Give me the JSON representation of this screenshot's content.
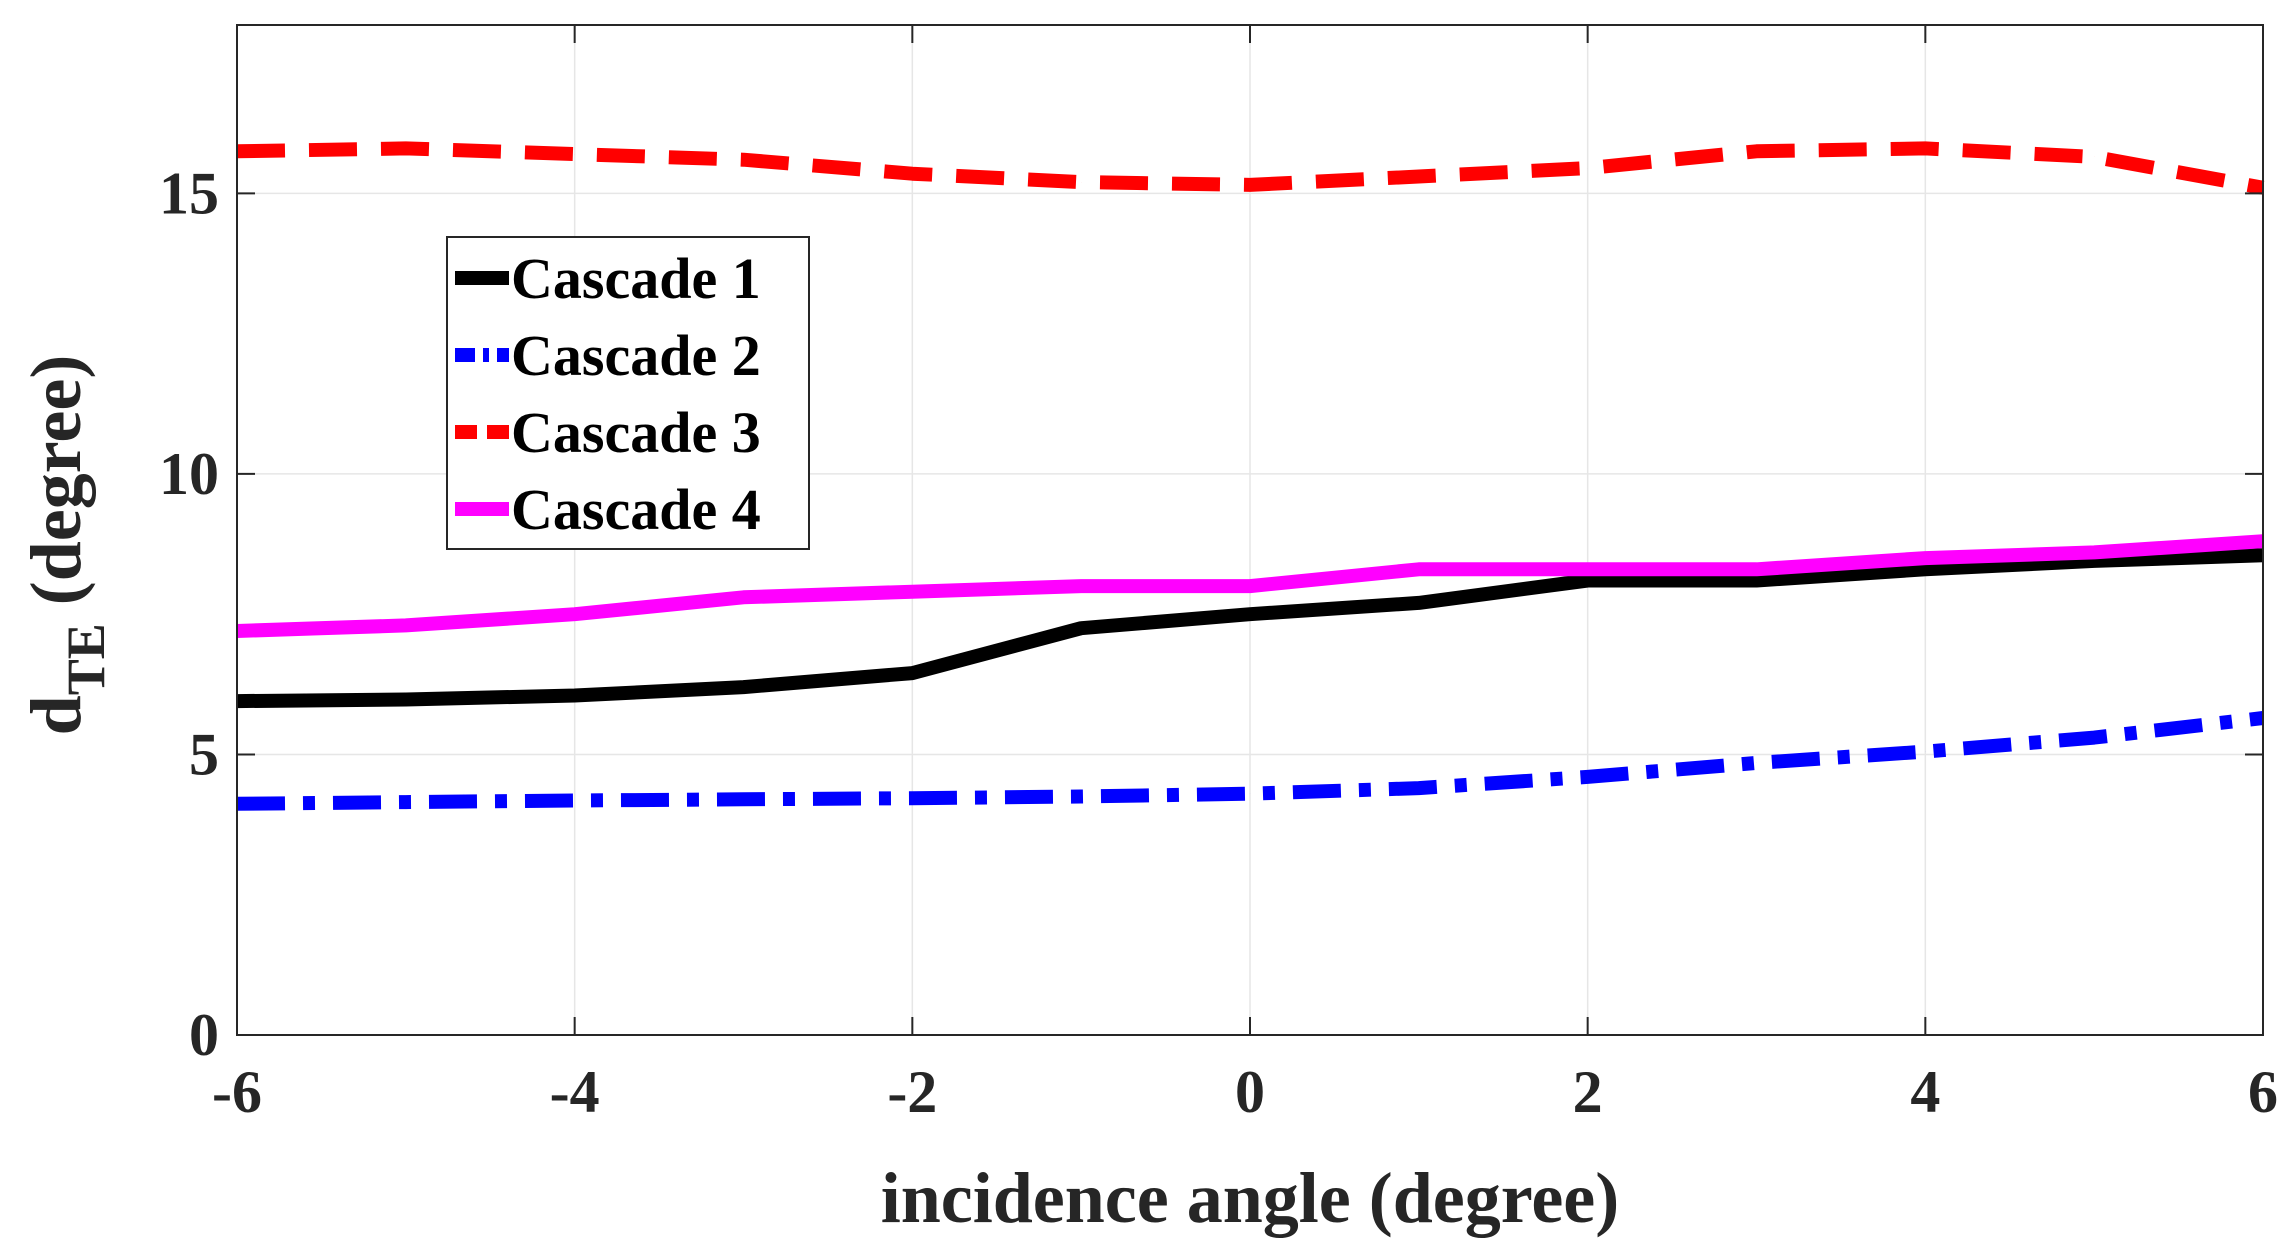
{
  "chart_data": {
    "type": "line",
    "title": "",
    "xlabel": "incidence angle (degree)",
    "ylabel": {
      "main": "d",
      "subscript": "TE",
      "suffix": " (degree)"
    },
    "xlim": [
      -6,
      6
    ],
    "ylim": [
      0,
      18
    ],
    "xticks": [
      -6,
      -4,
      -2,
      0,
      2,
      4,
      6
    ],
    "yticks": [
      0,
      5,
      10,
      15
    ],
    "grid": true,
    "legend_position": "upper-left",
    "x": [
      -6,
      -5,
      -4,
      -3,
      -2,
      -1,
      0,
      1,
      2,
      3,
      4,
      5,
      6
    ],
    "series": [
      {
        "name": "Cascade 1",
        "color": "#000000",
        "style": "solid",
        "values": [
          5.95,
          5.98,
          6.05,
          6.2,
          6.45,
          7.25,
          7.5,
          7.7,
          8.1,
          8.1,
          8.3,
          8.45,
          8.55
        ]
      },
      {
        "name": "Cascade 2",
        "color": "#0000ff",
        "style": "dashdot",
        "values": [
          4.12,
          4.15,
          4.18,
          4.2,
          4.22,
          4.25,
          4.3,
          4.4,
          4.6,
          4.85,
          5.05,
          5.3,
          5.65
        ]
      },
      {
        "name": "Cascade 3",
        "color": "#ff0000",
        "style": "dashed",
        "values": [
          15.75,
          15.8,
          15.7,
          15.6,
          15.35,
          15.2,
          15.15,
          15.3,
          15.45,
          15.75,
          15.8,
          15.65,
          15.1
        ]
      },
      {
        "name": "Cascade 4",
        "color": "#ff00ff",
        "style": "solid",
        "values": [
          7.2,
          7.3,
          7.5,
          7.8,
          7.9,
          8.0,
          8.0,
          8.3,
          8.3,
          8.3,
          8.5,
          8.6,
          8.8
        ]
      }
    ]
  }
}
